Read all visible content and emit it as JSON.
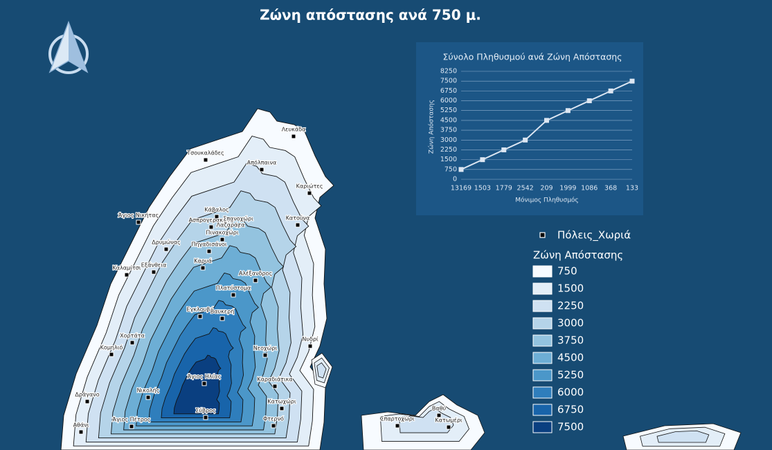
{
  "title": "Ζώνη απόστασης ανά 750 μ.",
  "chart_data": {
    "type": "line",
    "title": "Σύνολο Πληθυσμού ανά Ζώνη Απόστασης",
    "x_label": "Μόνιμος Πληθυσμός",
    "y_label": "Ζώνη Απόστασης",
    "categories": [
      "13169",
      "1503",
      "1779",
      "2542",
      "209",
      "1999",
      "1086",
      "368",
      "133"
    ],
    "values": [
      750,
      1500,
      2250,
      3000,
      4500,
      5250,
      6000,
      6750,
      7500
    ],
    "color": "#dce6f2",
    "ylim": [
      0,
      8250
    ],
    "yticks": [
      0,
      750,
      1500,
      2250,
      3000,
      3750,
      4500,
      5250,
      6000,
      6750,
      7500,
      8250
    ],
    "grid": true
  },
  "map": {
    "towns": [
      "Λευκάδα",
      "Τσουκαλάδες",
      "Απόλπαινα",
      "Καριώτες",
      "Άγιος Νικήτας",
      "Κάβαλος",
      "Ασπρογερακάτα",
      "Σπανοχώρι",
      "Κατούνα",
      "Λαζαράτα",
      "Δρυμώνας",
      "Πηγαδισάνοι",
      "Πινακοχώρι",
      "Καλαμίτσι",
      "Εξάνθεια",
      "Καρυά",
      "Αλέξανδρος",
      "Πλατύστομα",
      "Εγκλουβή",
      "Βαυκερή",
      "Νυδρί",
      "Χορτάτα",
      "Κομηλιό",
      "Νεοχώρι",
      "Άγιος Ηλίας",
      "Καραδιάτικα",
      "Νικολής",
      "Δράγανο",
      "Σύβρος",
      "Άγιος Πέτρος",
      "Κατωχώρι",
      "Αθάνι",
      "Φτερνό",
      "Σπαρτοχώρι",
      "Βαθύ",
      "Κατωμέρι"
    ]
  },
  "legend": {
    "points_label": "Πόλεις_Χωριά",
    "zones_title": "Ζώνη Απόστασης",
    "zones": [
      750,
      1500,
      2250,
      3000,
      3750,
      4500,
      5250,
      6000,
      6750,
      7500
    ],
    "colors": [
      "#f7fbff",
      "#e3eef8",
      "#cfe1f2",
      "#b5d4e9",
      "#93c3df",
      "#6daed5",
      "#4b97c9",
      "#2f7ebc",
      "#1864aa",
      "#0a3f80"
    ]
  }
}
